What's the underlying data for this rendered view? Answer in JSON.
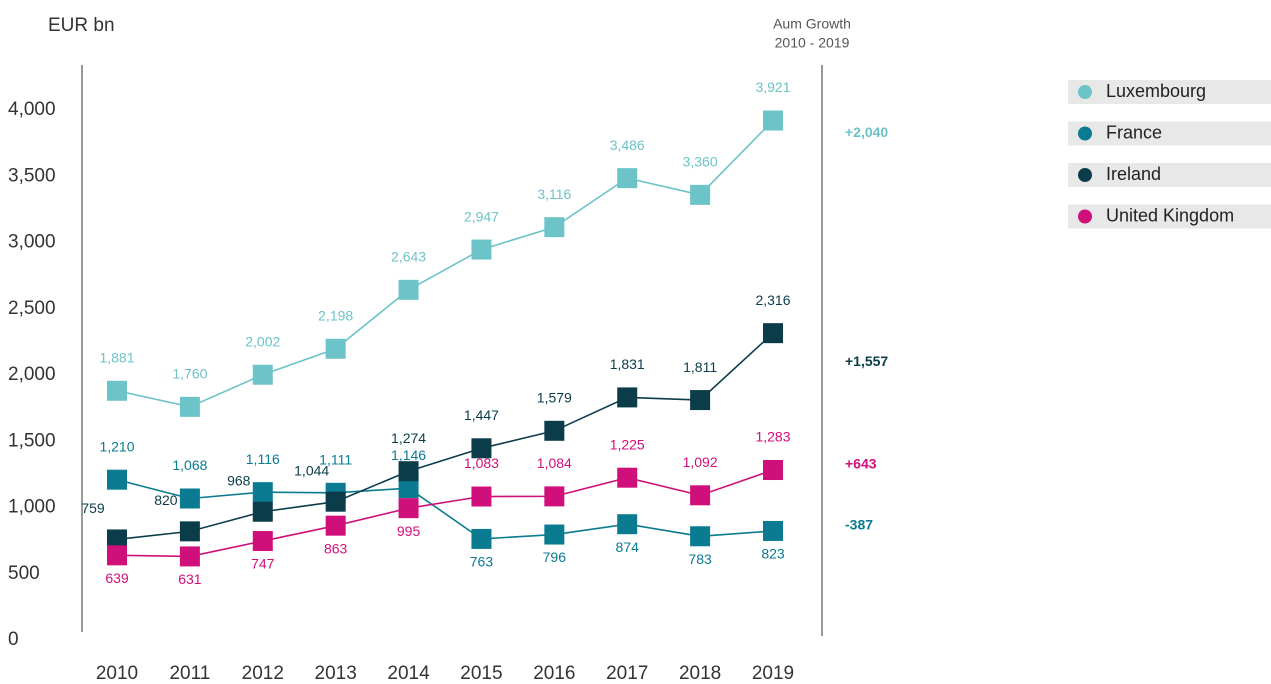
{
  "chart_data": {
    "type": "line",
    "y_label": "EUR bn",
    "growth_header": [
      "Aum Growth",
      "2010 - 2019"
    ],
    "categories": [
      "2010",
      "2011",
      "2012",
      "2013",
      "2014",
      "2015",
      "2016",
      "2017",
      "2018",
      "2019"
    ],
    "series": [
      {
        "name": "Luxembourg",
        "color": "#6cc3c8",
        "growth": "+2,040",
        "values": [
          1881,
          1760,
          2002,
          2198,
          2643,
          2947,
          3116,
          3486,
          3360,
          3921
        ],
        "value_labels": [
          "1,881",
          "1,760",
          "2,002",
          "2,198",
          "2,643",
          "2,947",
          "3,116",
          "3,486",
          "3,360",
          "3,921"
        ]
      },
      {
        "name": "France",
        "color": "#0a7b91",
        "growth": "-387",
        "values": [
          1210,
          1068,
          1116,
          1111,
          1146,
          763,
          796,
          874,
          783,
          823
        ],
        "value_labels": [
          "1,210",
          "1,068",
          "1,116",
          "1,111",
          "1,146",
          "763",
          "796",
          "874",
          "783",
          "823"
        ]
      },
      {
        "name": "Ireland",
        "color": "#0b3c4a",
        "growth": "+1,557",
        "values": [
          759,
          820,
          968,
          1044,
          1274,
          1447,
          1579,
          1831,
          1811,
          2316
        ],
        "value_labels": [
          "759",
          "820",
          "968",
          "1,044",
          "1,274",
          "1,447",
          "1,579",
          "1,831",
          "1,811",
          "2,316"
        ]
      },
      {
        "name": "United Kingdom",
        "color": "#d0107a",
        "growth": "+643",
        "values": [
          639,
          631,
          747,
          863,
          995,
          1083,
          1084,
          1225,
          1092,
          1283
        ],
        "value_labels": [
          "639",
          "631",
          "747",
          "863",
          "995",
          "1,083",
          "1,084",
          "1,225",
          "1,092",
          "1,283"
        ]
      }
    ],
    "ylim": [
      0,
      4340
    ],
    "yticks": [
      0,
      500,
      {
        "value": 1000,
        "label": "1,000"
      },
      {
        "value": 1500,
        "label": "1,500"
      },
      {
        "value": 2000,
        "label": "2,000"
      },
      {
        "value": 2500,
        "label": "2,500"
      },
      {
        "value": 3000,
        "label": "3,000"
      },
      {
        "value": 3500,
        "label": "3,500"
      },
      {
        "value": 4000,
        "label": "4,000"
      }
    ],
    "legend": "right"
  }
}
